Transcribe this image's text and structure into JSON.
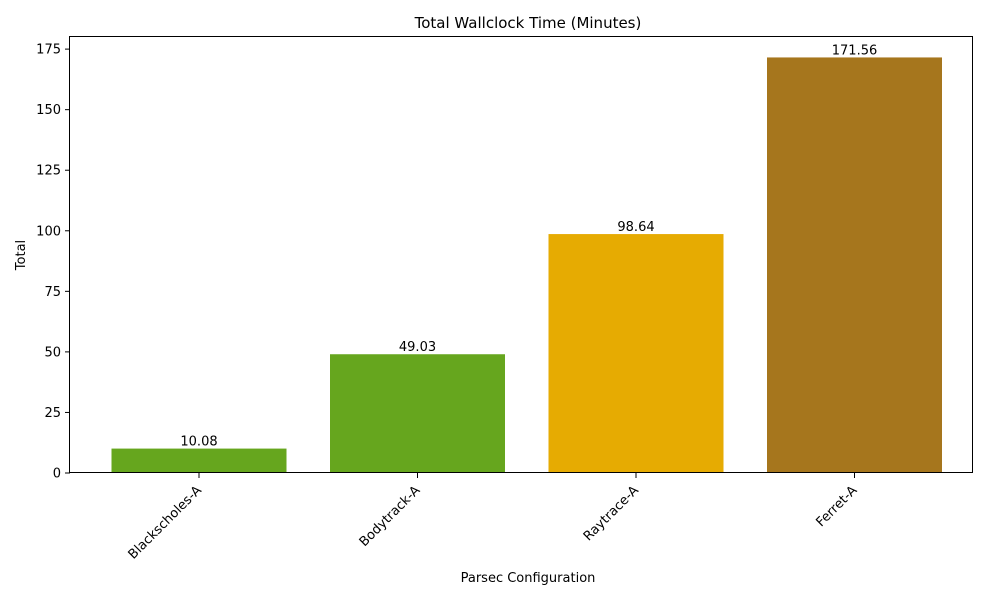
{
  "chart_data": {
    "type": "bar",
    "title": "Total Wallclock Time (Minutes)",
    "xlabel": "Parsec Configuration",
    "ylabel": "Total",
    "categories": [
      "Blackscholes-A",
      "Bodytrack-A",
      "Raytrace-A",
      "Ferret-A"
    ],
    "values": [
      10.08,
      49.03,
      98.64,
      171.56
    ],
    "value_labels": [
      "10.08",
      "49.03",
      "98.64",
      "171.56"
    ],
    "colors": [
      "#66a61e",
      "#66a61e",
      "#e6ab02",
      "#a6761d"
    ],
    "ylim": [
      0,
      180
    ],
    "yticks": [
      0,
      25,
      50,
      75,
      100,
      125,
      150,
      175
    ],
    "ytick_labels": [
      "0",
      "25",
      "50",
      "75",
      "100",
      "125",
      "150",
      "175"
    ],
    "grid": false,
    "legend": "none"
  }
}
